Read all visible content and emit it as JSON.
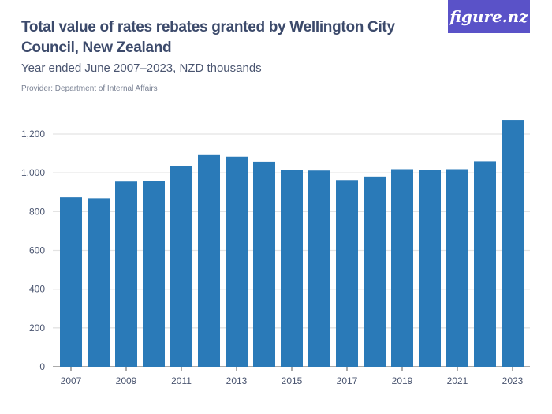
{
  "header": {
    "title": "Total value of rates rebates granted by Wellington City Council, New Zealand",
    "subtitle": "Year ended June 2007–2023, NZD thousands",
    "provider": "Provider: Department of Internal Affairs",
    "logo": "figure.nz"
  },
  "chart_data": {
    "type": "bar",
    "title": "Total value of rates rebates granted by Wellington City Council, New Zealand",
    "subtitle": "Year ended June 2007–2023, NZD thousands",
    "categories": [
      "2007",
      "2008",
      "2009",
      "2010",
      "2011",
      "2012",
      "2013",
      "2014",
      "2015",
      "2016",
      "2017",
      "2018",
      "2019",
      "2020",
      "2021",
      "2022",
      "2023"
    ],
    "values": [
      874,
      869,
      955,
      960,
      1034,
      1095,
      1083,
      1058,
      1013,
      1012,
      963,
      981,
      1019,
      1016,
      1019,
      1060,
      1273
    ],
    "x_tick_labels": [
      "2007",
      "2009",
      "2011",
      "2013",
      "2015",
      "2017",
      "2019",
      "2021",
      "2023"
    ],
    "y_ticks": [
      0,
      200,
      400,
      600,
      800,
      1000,
      1200
    ],
    "y_tick_labels": [
      "0",
      "200",
      "400",
      "600",
      "800",
      "1,000",
      "1,200"
    ],
    "ylim": [
      0,
      1300
    ],
    "grid": true,
    "bar_color": "#2a7ab8"
  }
}
